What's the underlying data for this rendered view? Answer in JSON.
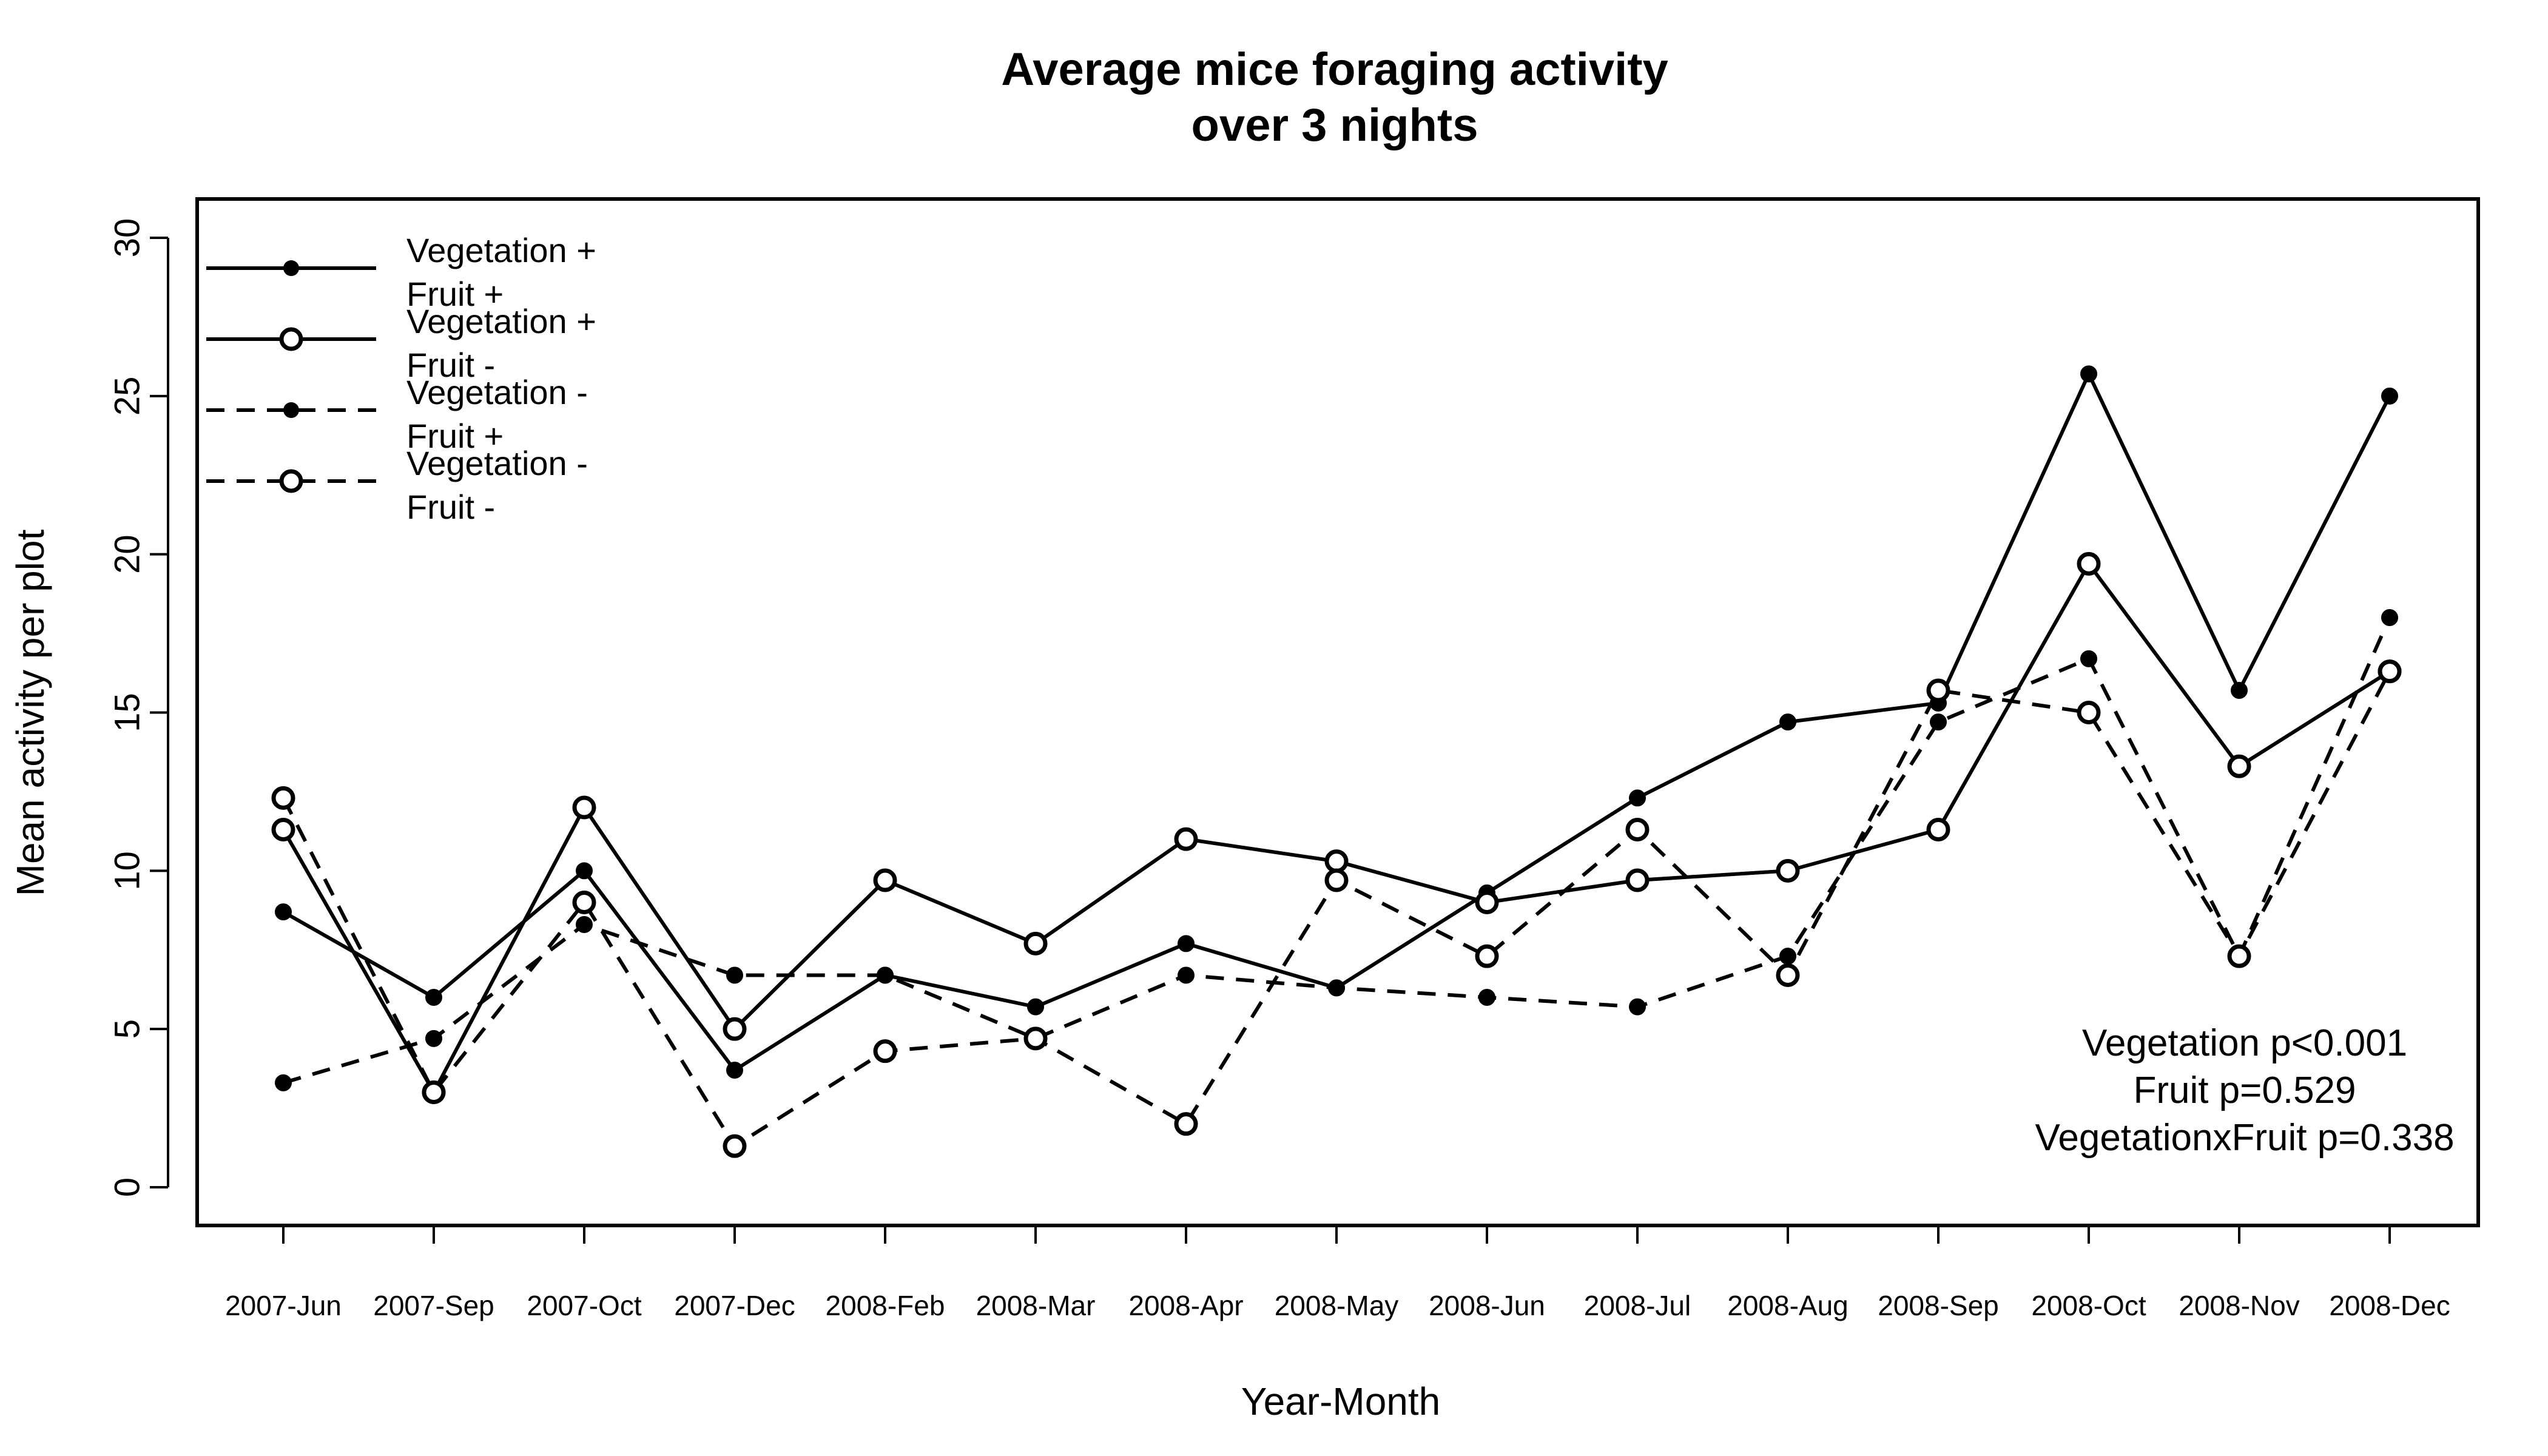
{
  "chart_data": {
    "type": "line",
    "title": [
      "Average mice foraging activity",
      "over 3 nights"
    ],
    "xlabel": "Year-Month",
    "ylabel": "Mean activity per plot",
    "ylim": [
      0,
      30
    ],
    "yticks": [
      0,
      5,
      10,
      15,
      20,
      25,
      30
    ],
    "categories": [
      "2007-Jun",
      "2007-Sep",
      "2007-Oct",
      "2007-Dec",
      "2008-Feb",
      "2008-Mar",
      "2008-Apr",
      "2008-May",
      "2008-Jun",
      "2008-Jul",
      "2008-Aug",
      "2008-Sep",
      "2008-Oct",
      "2008-Nov",
      "2008-Dec"
    ],
    "legend_position": "top-left",
    "grid": false,
    "series": [
      {
        "name": [
          "Vegetation +",
          "Fruit +"
        ],
        "line": "solid",
        "marker": "filled",
        "values": [
          8.7,
          6.0,
          10.0,
          3.7,
          6.7,
          5.7,
          7.7,
          6.3,
          9.3,
          12.3,
          14.7,
          15.3,
          25.7,
          15.7,
          25.0
        ]
      },
      {
        "name": [
          "Vegetation +",
          "Fruit -"
        ],
        "line": "solid",
        "marker": "open",
        "values": [
          11.3,
          3.0,
          12.0,
          5.0,
          9.7,
          7.7,
          11.0,
          10.3,
          9.0,
          9.7,
          10.0,
          11.3,
          19.7,
          13.3,
          16.3
        ]
      },
      {
        "name": [
          "Vegetation -",
          "Fruit +"
        ],
        "line": "dashed",
        "marker": "filled",
        "values": [
          3.3,
          4.7,
          8.3,
          6.7,
          6.7,
          4.7,
          6.7,
          6.3,
          6.0,
          5.7,
          7.3,
          14.7,
          16.7,
          7.3,
          18.0
        ]
      },
      {
        "name": [
          "Vegetation -",
          "Fruit -"
        ],
        "line": "dashed",
        "marker": "open",
        "values": [
          12.3,
          3.0,
          9.0,
          1.3,
          4.3,
          4.7,
          2.0,
          9.7,
          7.3,
          11.3,
          6.7,
          15.7,
          15.0,
          7.3,
          16.3
        ]
      }
    ],
    "annotations": [
      "Vegetation p<0.001",
      "Fruit p=0.529",
      "VegetationxFruit p=0.338"
    ]
  }
}
